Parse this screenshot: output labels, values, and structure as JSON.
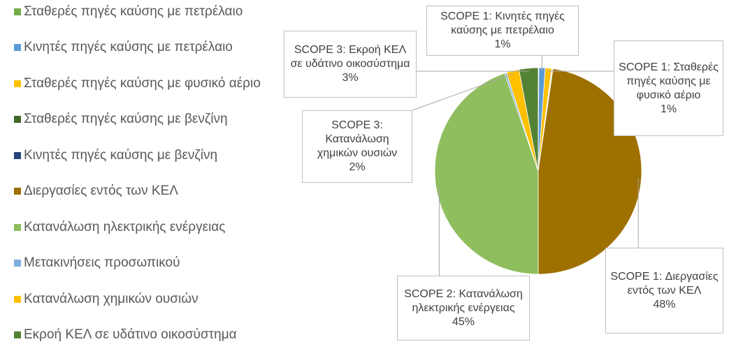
{
  "chart_data": {
    "type": "pie",
    "categories": [
      "Σταθερές πηγές καύσης με πετρέλαιο",
      "Κινητές πηγές καύσης με πετρέλαιο",
      "Σταθερές πηγές καύσης με φυσικό αέριο",
      "Σταθερές πηγές καύσης με βενζίνη",
      "Κινητές πηγές καύσης με βενζίνη",
      "Διεργασίες εντός των ΚΕΛ",
      "Κατανάλωση ηλεκτρικής ενέργειας",
      "Μετακινήσεις προσωπικού",
      "Κατανάλωση χημικών ουσιών",
      "Εκροή ΚΕΛ σε υδάτινο οικοσύστημα"
    ],
    "values": [
      0.1,
      1,
      1,
      0.1,
      0.1,
      48,
      45,
      0.3,
      2,
      3
    ],
    "colors": [
      "#70ad47",
      "#5b9bd5",
      "#ffc000",
      "#43682b",
      "#264478",
      "#9e7000",
      "#8fbe5f",
      "#7fb0e0",
      "#ffc000",
      "#548235"
    ],
    "label_names": [
      null,
      "SCOPE 1: Κινητές πηγές καύσης με πετρέλαιο",
      "SCOPE 1: Σταθερές πηγές καύσης με φυσικό αέριο",
      null,
      null,
      "SCOPE 1: Διεργασίες εντός των ΚΕΛ",
      "SCOPE 2: Κατανάλωση ηλεκτρικής ενέργειας",
      null,
      "SCOPE 3: Κατανάλωση χημικών ουσιών",
      "SCOPE 3: Εκροή ΚΕΛ σε υδάτινο οικοσύστημα"
    ],
    "value_labels": [
      null,
      "1%",
      "1%",
      null,
      null,
      "48%",
      "45%",
      null,
      "2%",
      "3%"
    ],
    "legend": "left"
  }
}
